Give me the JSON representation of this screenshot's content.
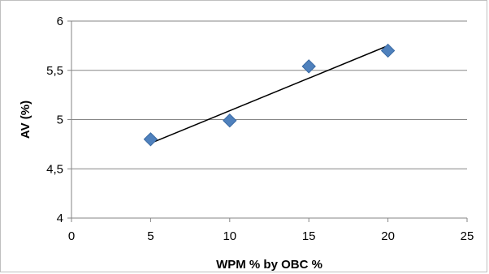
{
  "chart_data": {
    "type": "scatter",
    "title": "",
    "xlabel": "WPM % by OBC %",
    "ylabel": "AV (%)",
    "xlim": [
      0,
      25
    ],
    "ylim": [
      4,
      6
    ],
    "x_ticks": [
      0,
      5,
      10,
      15,
      20,
      25
    ],
    "y_ticks": [
      4,
      4.5,
      5,
      5.5,
      6
    ],
    "x_tick_labels": [
      "0",
      "5",
      "10",
      "15",
      "20",
      "25"
    ],
    "y_tick_labels": [
      "4",
      "4,5",
      "5",
      "5,5",
      "6"
    ],
    "grid": {
      "horizontal": true,
      "vertical": false
    },
    "legend": "none",
    "series": [
      {
        "marker": "diamond",
        "color": "#4F81BD",
        "points": [
          {
            "x": 5,
            "y": 4.8
          },
          {
            "x": 10,
            "y": 4.99
          },
          {
            "x": 15,
            "y": 5.54
          },
          {
            "x": 20,
            "y": 5.7
          }
        ]
      }
    ],
    "trendline": {
      "type": "linear",
      "color": "#000000",
      "from": {
        "x": 5,
        "y": 4.76
      },
      "to": {
        "x": 20,
        "y": 5.75
      }
    }
  }
}
